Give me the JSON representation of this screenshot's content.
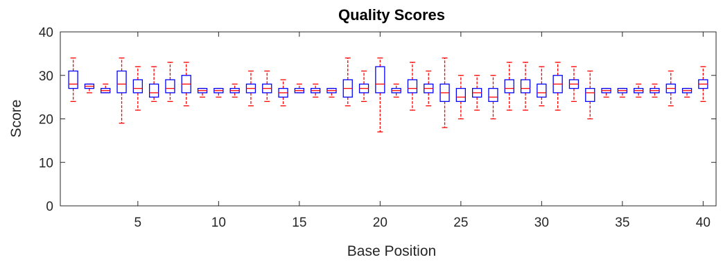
{
  "chart_data": {
    "type": "box",
    "title": "Quality Scores",
    "xlabel": "Base Position",
    "ylabel": "Score",
    "xlim": [
      0.2,
      40.8
    ],
    "ylim": [
      0,
      40
    ],
    "xticks": [
      5,
      10,
      15,
      20,
      25,
      30,
      35,
      40
    ],
    "yticks": [
      0,
      10,
      20,
      30,
      40
    ],
    "colors": {
      "box": "#0000ff",
      "whisker": "#ff0000",
      "median": "#ff0000",
      "axis": "#262626"
    },
    "boxes": [
      {
        "pos": 1,
        "whislo": 24,
        "q1": 27,
        "med": 28,
        "q3": 31,
        "whishi": 34
      },
      {
        "pos": 2,
        "whislo": 26,
        "q1": 27,
        "med": 27.5,
        "q3": 28,
        "whishi": 28
      },
      {
        "pos": 3,
        "whislo": 26,
        "q1": 26,
        "med": 26.5,
        "q3": 27,
        "whishi": 28
      },
      {
        "pos": 4,
        "whislo": 19,
        "q1": 26,
        "med": 28,
        "q3": 31,
        "whishi": 34
      },
      {
        "pos": 5,
        "whislo": 22,
        "q1": 26,
        "med": 27,
        "q3": 29,
        "whishi": 32
      },
      {
        "pos": 6,
        "whislo": 24,
        "q1": 25,
        "med": 26,
        "q3": 28,
        "whishi": 32
      },
      {
        "pos": 7,
        "whislo": 24,
        "q1": 26,
        "med": 27,
        "q3": 29,
        "whishi": 33
      },
      {
        "pos": 8,
        "whislo": 23,
        "q1": 26,
        "med": 28,
        "q3": 30,
        "whishi": 33
      },
      {
        "pos": 9,
        "whislo": 25,
        "q1": 26,
        "med": 26.5,
        "q3": 27,
        "whishi": 27
      },
      {
        "pos": 10,
        "whislo": 25,
        "q1": 26,
        "med": 26.5,
        "q3": 27,
        "whishi": 27
      },
      {
        "pos": 11,
        "whislo": 25,
        "q1": 26,
        "med": 26.5,
        "q3": 27,
        "whishi": 28
      },
      {
        "pos": 12,
        "whislo": 23,
        "q1": 26,
        "med": 27,
        "q3": 28,
        "whishi": 31
      },
      {
        "pos": 13,
        "whislo": 24,
        "q1": 26,
        "med": 27,
        "q3": 28,
        "whishi": 31
      },
      {
        "pos": 14,
        "whislo": 23,
        "q1": 25,
        "med": 26,
        "q3": 27,
        "whishi": 29
      },
      {
        "pos": 15,
        "whislo": 26,
        "q1": 26,
        "med": 26.5,
        "q3": 27,
        "whishi": 28
      },
      {
        "pos": 16,
        "whislo": 25,
        "q1": 26,
        "med": 26.5,
        "q3": 27,
        "whishi": 28
      },
      {
        "pos": 17,
        "whislo": 25,
        "q1": 26,
        "med": 26.5,
        "q3": 27,
        "whishi": 27
      },
      {
        "pos": 18,
        "whislo": 23,
        "q1": 25,
        "med": 27,
        "q3": 29,
        "whishi": 34
      },
      {
        "pos": 19,
        "whislo": 24,
        "q1": 26,
        "med": 27,
        "q3": 28,
        "whishi": 31
      },
      {
        "pos": 20,
        "whislo": 17,
        "q1": 26,
        "med": 28,
        "q3": 32,
        "whishi": 34
      },
      {
        "pos": 21,
        "whislo": 25,
        "q1": 26,
        "med": 26.5,
        "q3": 27,
        "whishi": 28
      },
      {
        "pos": 22,
        "whislo": 22,
        "q1": 26,
        "med": 27,
        "q3": 29,
        "whishi": 33
      },
      {
        "pos": 23,
        "whislo": 23,
        "q1": 26,
        "med": 27,
        "q3": 28,
        "whishi": 31
      },
      {
        "pos": 24,
        "whislo": 18,
        "q1": 24,
        "med": 26,
        "q3": 28,
        "whishi": 34
      },
      {
        "pos": 25,
        "whislo": 20,
        "q1": 24,
        "med": 25,
        "q3": 27,
        "whishi": 30
      },
      {
        "pos": 26,
        "whislo": 22,
        "q1": 25,
        "med": 26,
        "q3": 27,
        "whishi": 30
      },
      {
        "pos": 27,
        "whislo": 20,
        "q1": 24,
        "med": 25,
        "q3": 27,
        "whishi": 30
      },
      {
        "pos": 28,
        "whislo": 22,
        "q1": 26,
        "med": 27,
        "q3": 29,
        "whishi": 33
      },
      {
        "pos": 29,
        "whislo": 22,
        "q1": 26,
        "med": 27,
        "q3": 29,
        "whishi": 33
      },
      {
        "pos": 30,
        "whislo": 23,
        "q1": 25,
        "med": 26,
        "q3": 28,
        "whishi": 32
      },
      {
        "pos": 31,
        "whislo": 22,
        "q1": 26,
        "med": 28,
        "q3": 30,
        "whishi": 33
      },
      {
        "pos": 32,
        "whislo": 24,
        "q1": 27,
        "med": 28,
        "q3": 29,
        "whishi": 32
      },
      {
        "pos": 33,
        "whislo": 20,
        "q1": 24,
        "med": 26,
        "q3": 27,
        "whishi": 31
      },
      {
        "pos": 34,
        "whislo": 25,
        "q1": 26,
        "med": 26.5,
        "q3": 27,
        "whishi": 27
      },
      {
        "pos": 35,
        "whislo": 25,
        "q1": 26,
        "med": 26.5,
        "q3": 27,
        "whishi": 27
      },
      {
        "pos": 36,
        "whislo": 25,
        "q1": 26,
        "med": 26.5,
        "q3": 27,
        "whishi": 28
      },
      {
        "pos": 37,
        "whislo": 25,
        "q1": 26,
        "med": 26.5,
        "q3": 27,
        "whishi": 28
      },
      {
        "pos": 38,
        "whislo": 23,
        "q1": 26,
        "med": 27,
        "q3": 28,
        "whishi": 31
      },
      {
        "pos": 39,
        "whislo": 25,
        "q1": 26,
        "med": 26.5,
        "q3": 27,
        "whishi": 27
      },
      {
        "pos": 40,
        "whislo": 24,
        "q1": 27,
        "med": 28,
        "q3": 29,
        "whishi": 32
      }
    ]
  }
}
